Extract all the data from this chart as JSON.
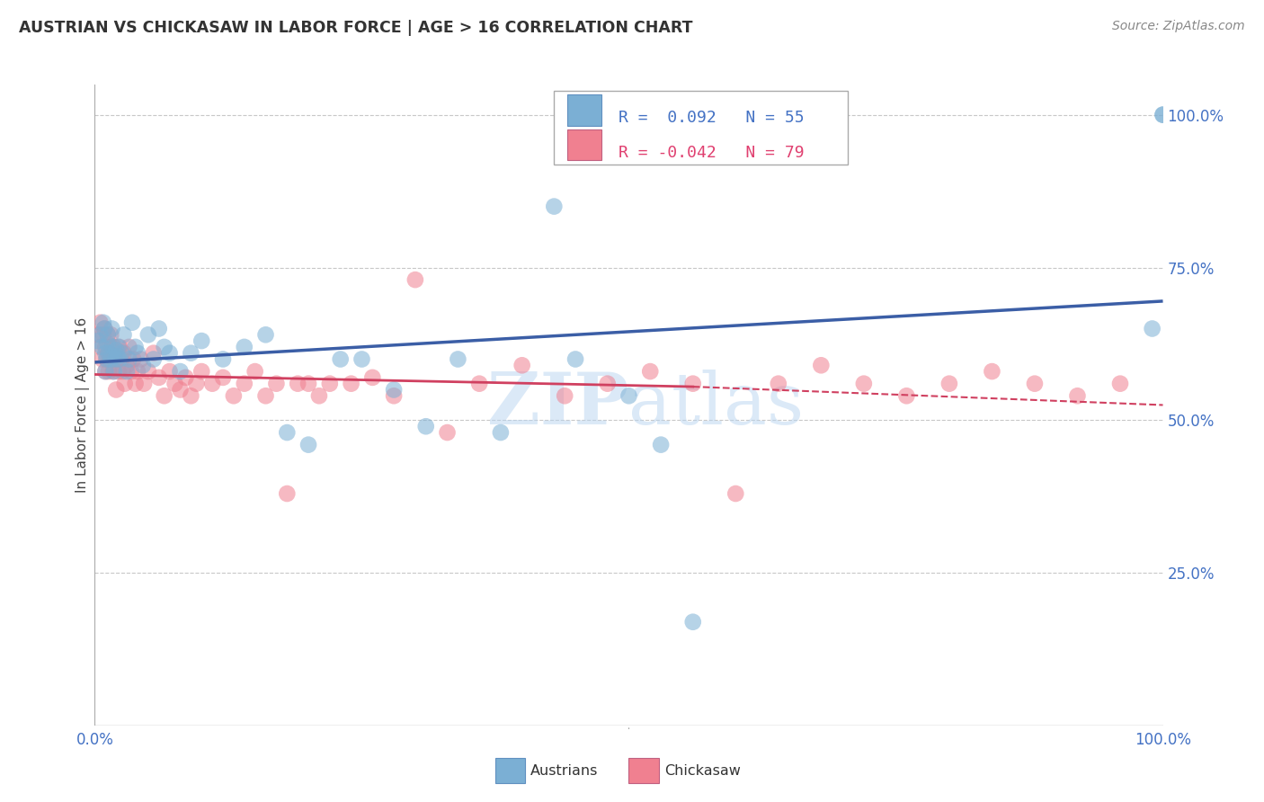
{
  "title": "AUSTRIAN VS CHICKASAW IN LABOR FORCE | AGE > 16 CORRELATION CHART",
  "source": "Source: ZipAtlas.com",
  "ylabel": "In Labor Force | Age > 16",
  "y_ticks": [
    "25.0%",
    "50.0%",
    "75.0%",
    "100.0%"
  ],
  "y_tick_vals": [
    0.25,
    0.5,
    0.75,
    1.0
  ],
  "watermark": "ZIPatlas",
  "austrians_color": "#7bafd4",
  "chickasaw_color": "#f08090",
  "trend_austrians_color": "#3b5ea6",
  "trend_chickasaw_color": "#d04060",
  "xlim": [
    0.0,
    1.0
  ],
  "ylim": [
    0.0,
    1.05
  ],
  "background_color": "#ffffff",
  "grid_color": "#c8c8c8",
  "blue_trend": [
    0.595,
    0.695
  ],
  "pink_trend_solid": [
    0.575,
    0.555
  ],
  "pink_trend_dashed": [
    0.555,
    0.525
  ],
  "aus_x": [
    0.003,
    0.005,
    0.007,
    0.008,
    0.009,
    0.01,
    0.01,
    0.011,
    0.012,
    0.012,
    0.013,
    0.015,
    0.016,
    0.017,
    0.018,
    0.019,
    0.02,
    0.021,
    0.022,
    0.023,
    0.025,
    0.027,
    0.03,
    0.032,
    0.035,
    0.038,
    0.04,
    0.045,
    0.05,
    0.055,
    0.06,
    0.065,
    0.07,
    0.08,
    0.09,
    0.1,
    0.12,
    0.14,
    0.16,
    0.18,
    0.2,
    0.23,
    0.25,
    0.28,
    0.31,
    0.34,
    0.38,
    0.43,
    0.45,
    0.5,
    0.53,
    0.56,
    0.99,
    1.0,
    1.0
  ],
  "aus_y": [
    0.63,
    0.64,
    0.62,
    0.66,
    0.65,
    0.61,
    0.58,
    0.6,
    0.64,
    0.625,
    0.61,
    0.6,
    0.65,
    0.62,
    0.58,
    0.6,
    0.615,
    0.605,
    0.62,
    0.6,
    0.61,
    0.64,
    0.58,
    0.6,
    0.66,
    0.62,
    0.61,
    0.59,
    0.64,
    0.6,
    0.65,
    0.62,
    0.61,
    0.58,
    0.61,
    0.63,
    0.6,
    0.62,
    0.64,
    0.48,
    0.46,
    0.6,
    0.6,
    0.55,
    0.49,
    0.6,
    0.48,
    0.85,
    0.6,
    0.54,
    0.46,
    0.17,
    0.65,
    1.0,
    1.0
  ],
  "chk_x": [
    0.003,
    0.005,
    0.005,
    0.007,
    0.008,
    0.009,
    0.01,
    0.01,
    0.011,
    0.012,
    0.013,
    0.013,
    0.014,
    0.015,
    0.015,
    0.016,
    0.017,
    0.018,
    0.019,
    0.02,
    0.021,
    0.022,
    0.023,
    0.025,
    0.026,
    0.027,
    0.028,
    0.03,
    0.032,
    0.034,
    0.036,
    0.038,
    0.04,
    0.043,
    0.046,
    0.05,
    0.055,
    0.06,
    0.065,
    0.07,
    0.075,
    0.08,
    0.085,
    0.09,
    0.095,
    0.1,
    0.11,
    0.12,
    0.13,
    0.14,
    0.15,
    0.16,
    0.17,
    0.18,
    0.19,
    0.2,
    0.21,
    0.22,
    0.24,
    0.26,
    0.28,
    0.3,
    0.33,
    0.36,
    0.4,
    0.44,
    0.48,
    0.52,
    0.56,
    0.6,
    0.64,
    0.68,
    0.72,
    0.76,
    0.8,
    0.84,
    0.88,
    0.92,
    0.96
  ],
  "chk_y": [
    0.64,
    0.66,
    0.62,
    0.6,
    0.64,
    0.65,
    0.58,
    0.62,
    0.6,
    0.64,
    0.61,
    0.58,
    0.6,
    0.64,
    0.62,
    0.6,
    0.58,
    0.62,
    0.6,
    0.55,
    0.6,
    0.58,
    0.62,
    0.6,
    0.58,
    0.61,
    0.56,
    0.59,
    0.62,
    0.58,
    0.6,
    0.56,
    0.58,
    0.6,
    0.56,
    0.58,
    0.61,
    0.57,
    0.54,
    0.58,
    0.56,
    0.55,
    0.57,
    0.54,
    0.56,
    0.58,
    0.56,
    0.57,
    0.54,
    0.56,
    0.58,
    0.54,
    0.56,
    0.38,
    0.56,
    0.56,
    0.54,
    0.56,
    0.56,
    0.57,
    0.54,
    0.73,
    0.48,
    0.56,
    0.59,
    0.54,
    0.56,
    0.58,
    0.56,
    0.38,
    0.56,
    0.59,
    0.56,
    0.54,
    0.56,
    0.58,
    0.56,
    0.54,
    0.56
  ]
}
